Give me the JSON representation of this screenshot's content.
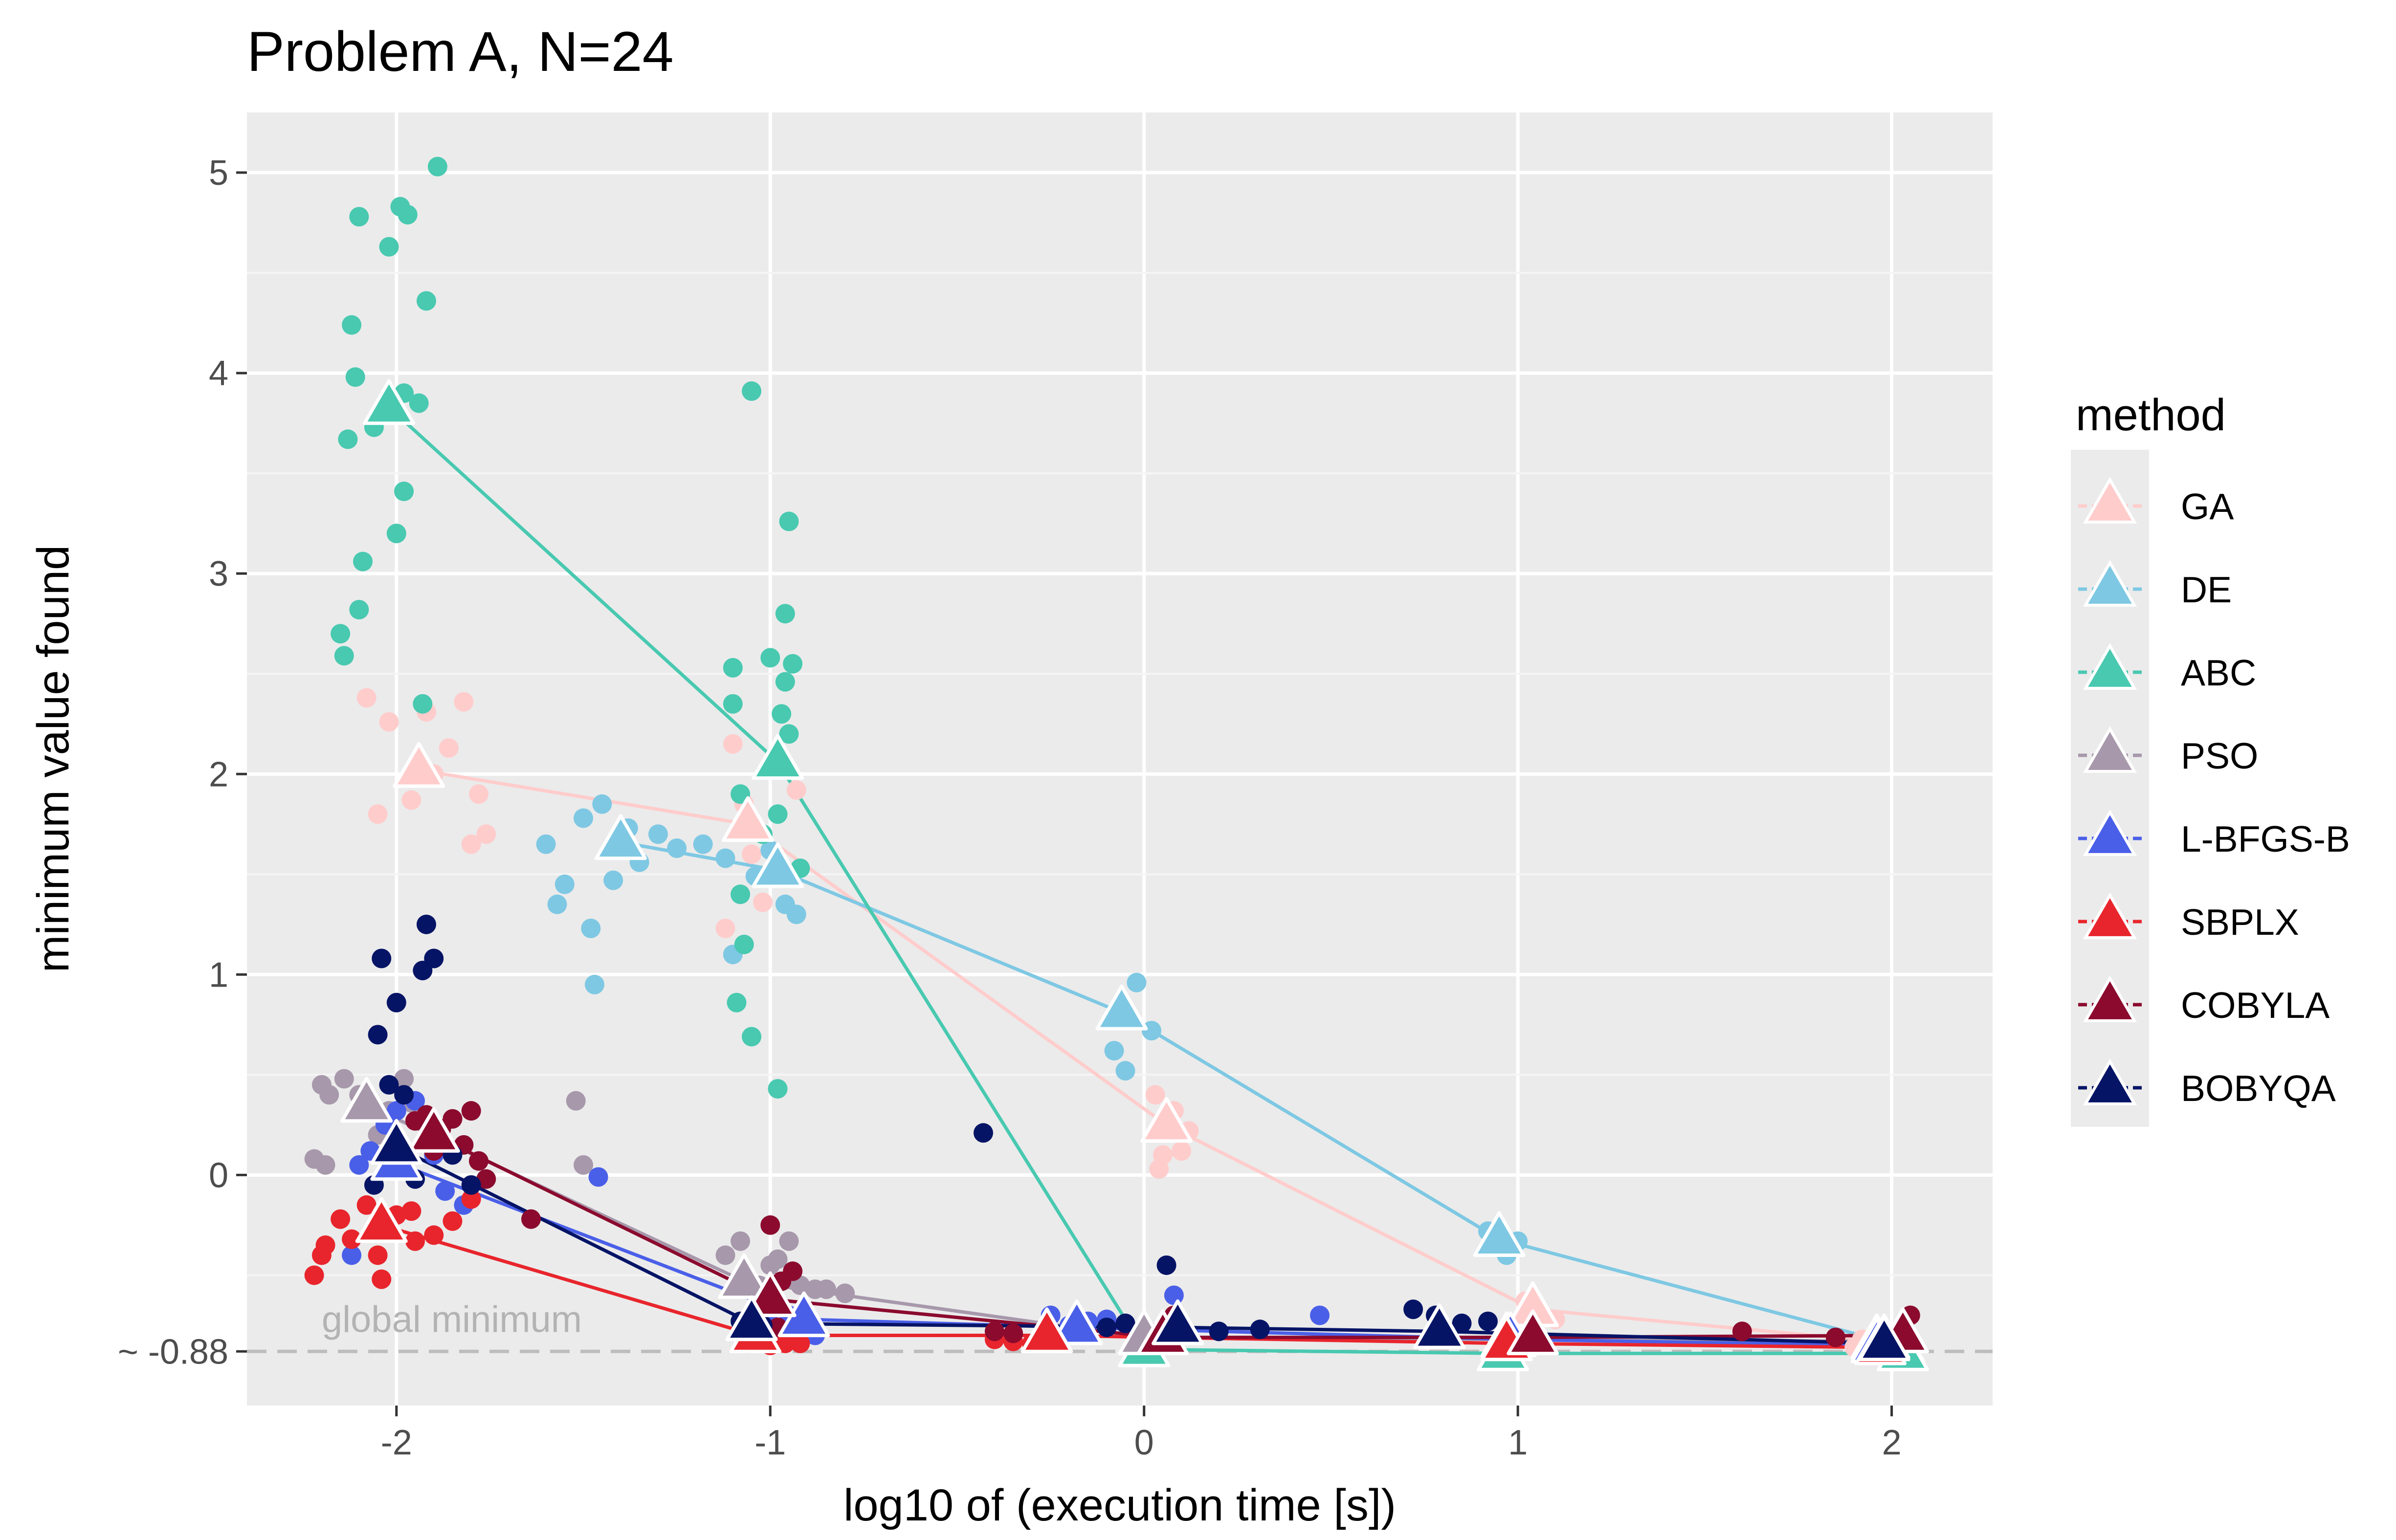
{
  "chart_data": {
    "type": "scatter",
    "title": "Problem A, N=24",
    "xlabel": "log10 of (execution time [s])",
    "ylabel": "minimum value found",
    "xlim": [
      -2.4,
      2.27
    ],
    "ylim": [
      -1.15,
      5.3
    ],
    "x_ticks": [
      {
        "value": -2,
        "label": "-2"
      },
      {
        "value": -1,
        "label": "-1"
      },
      {
        "value": 0,
        "label": "0"
      },
      {
        "value": 1,
        "label": "1"
      },
      {
        "value": 2,
        "label": "2"
      }
    ],
    "y_ticks": [
      {
        "value": 5,
        "label": "5"
      },
      {
        "value": 4,
        "label": "4"
      },
      {
        "value": 3,
        "label": "3"
      },
      {
        "value": 2,
        "label": "2"
      },
      {
        "value": 1,
        "label": "1"
      },
      {
        "value": 0,
        "label": "0"
      },
      {
        "value": -0.88,
        "label": "~ -0.88"
      }
    ],
    "reference_line": {
      "y": -0.88,
      "label": "global minimum",
      "color": "#bdbdbd"
    },
    "legend_title": "method",
    "legend_position": "right",
    "grid": true,
    "background": "#ebebeb",
    "series": [
      {
        "name": "GA",
        "color": "#FFCCCC",
        "summary": [
          [
            -1.94,
            2.02
          ],
          [
            -1.06,
            1.75
          ],
          [
            0.06,
            0.25
          ],
          [
            1.04,
            -0.67
          ],
          [
            1.96,
            -0.83
          ]
        ],
        "points": [
          [
            -2.08,
            2.38
          ],
          [
            -2.05,
            1.8
          ],
          [
            -2.02,
            2.26
          ],
          [
            -1.96,
            1.87
          ],
          [
            -1.92,
            2.31
          ],
          [
            -1.9,
            2.0
          ],
          [
            -1.86,
            2.13
          ],
          [
            -1.82,
            2.36
          ],
          [
            -1.8,
            1.65
          ],
          [
            -1.78,
            1.9
          ],
          [
            -1.76,
            1.7
          ],
          [
            -1.1,
            2.15
          ],
          [
            -1.07,
            1.85
          ],
          [
            -1.05,
            1.6
          ],
          [
            -1.12,
            1.23
          ],
          [
            -1.02,
            1.36
          ],
          [
            -0.93,
            1.92
          ],
          [
            0.03,
            0.4
          ],
          [
            0.05,
            0.1
          ],
          [
            0.08,
            0.32
          ],
          [
            0.12,
            0.22
          ],
          [
            0.1,
            0.12
          ],
          [
            0.04,
            0.03
          ],
          [
            1.02,
            -0.63
          ],
          [
            1.06,
            -0.7
          ],
          [
            1.1,
            -0.72
          ],
          [
            1.92,
            -0.82
          ],
          [
            2.0,
            -0.85
          ],
          [
            1.9,
            -0.86
          ]
        ]
      },
      {
        "name": "DE",
        "color": "#7EC8E3",
        "summary": [
          [
            -1.4,
            1.66
          ],
          [
            -0.98,
            1.52
          ],
          [
            -0.06,
            0.81
          ],
          [
            0.95,
            -0.32
          ],
          [
            2.02,
            -0.85
          ]
        ],
        "points": [
          [
            -1.6,
            1.65
          ],
          [
            -1.55,
            1.45
          ],
          [
            -1.48,
            1.23
          ],
          [
            -1.45,
            1.85
          ],
          [
            -1.5,
            1.78
          ],
          [
            -1.42,
            1.47
          ],
          [
            -1.38,
            1.73
          ],
          [
            -1.35,
            1.56
          ],
          [
            -1.3,
            1.7
          ],
          [
            -1.25,
            1.63
          ],
          [
            -1.18,
            1.65
          ],
          [
            -1.12,
            1.58
          ],
          [
            -1.08,
            1.73
          ],
          [
            -1.04,
            1.49
          ],
          [
            -1.0,
            1.62
          ],
          [
            -0.96,
            1.35
          ],
          [
            -0.93,
            1.3
          ],
          [
            -1.47,
            0.95
          ],
          [
            -1.57,
            1.35
          ],
          [
            -1.1,
            1.1
          ],
          [
            -0.02,
            0.96
          ],
          [
            -0.08,
            0.62
          ],
          [
            -0.05,
            0.52
          ],
          [
            0.02,
            0.72
          ],
          [
            -0.06,
            0.8
          ],
          [
            0.92,
            -0.28
          ],
          [
            0.97,
            -0.4
          ],
          [
            1.0,
            -0.33
          ],
          [
            2.0,
            -0.86
          ],
          [
            2.04,
            -0.88
          ]
        ]
      },
      {
        "name": "ABC",
        "color": "#48C9B0",
        "summary": [
          [
            -2.02,
            3.83
          ],
          [
            -0.98,
            2.06
          ],
          [
            0.0,
            -0.87
          ],
          [
            0.96,
            -0.89
          ],
          [
            2.03,
            -0.89
          ]
        ],
        "points": [
          [
            -2.1,
            4.78
          ],
          [
            -2.12,
            4.24
          ],
          [
            -2.11,
            3.98
          ],
          [
            -2.13,
            3.67
          ],
          [
            -2.06,
            3.73
          ],
          [
            -2.02,
            4.63
          ],
          [
            -1.99,
            4.83
          ],
          [
            -1.97,
            4.79
          ],
          [
            -1.94,
            3.85
          ],
          [
            -1.98,
            3.41
          ],
          [
            -2.0,
            3.2
          ],
          [
            -2.09,
            3.06
          ],
          [
            -2.1,
            2.82
          ],
          [
            -2.15,
            2.7
          ],
          [
            -2.14,
            2.59
          ],
          [
            -1.92,
            4.36
          ],
          [
            -1.89,
            5.03
          ],
          [
            -1.93,
            2.35
          ],
          [
            -1.98,
            3.9
          ],
          [
            -1.05,
            3.91
          ],
          [
            -1.1,
            2.53
          ],
          [
            -1.0,
            2.58
          ],
          [
            -0.95,
            3.26
          ],
          [
            -0.96,
            2.46
          ],
          [
            -0.97,
            2.3
          ],
          [
            -0.94,
            2.55
          ],
          [
            -0.95,
            2.2
          ],
          [
            -1.1,
            2.35
          ],
          [
            -1.08,
            1.9
          ],
          [
            -1.02,
            1.7
          ],
          [
            -0.98,
            1.8
          ],
          [
            -1.08,
            1.4
          ],
          [
            -1.07,
            1.15
          ],
          [
            -1.09,
            0.86
          ],
          [
            -1.05,
            0.69
          ],
          [
            -0.98,
            0.43
          ],
          [
            -0.92,
            1.53
          ],
          [
            -0.96,
            2.8
          ],
          [
            0.02,
            -0.88
          ],
          [
            0.95,
            -0.89
          ],
          [
            2.02,
            -0.89
          ]
        ]
      },
      {
        "name": "PSO",
        "color": "#A798AB",
        "summary": [
          [
            -2.08,
            0.35
          ],
          [
            -1.07,
            -0.53
          ],
          [
            0.0,
            -0.81
          ],
          [
            0.97,
            -0.82
          ],
          [
            1.98,
            -0.83
          ]
        ],
        "points": [
          [
            -2.2,
            0.45
          ],
          [
            -2.18,
            0.4
          ],
          [
            -2.14,
            0.48
          ],
          [
            -2.08,
            0.31
          ],
          [
            -2.05,
            0.2
          ],
          [
            -2.02,
            0.32
          ],
          [
            -1.98,
            0.48
          ],
          [
            -1.96,
            0.36
          ],
          [
            -2.22,
            0.08
          ],
          [
            -2.19,
            0.05
          ],
          [
            -2.1,
            0.4
          ],
          [
            -1.52,
            0.37
          ],
          [
            -1.5,
            0.05
          ],
          [
            -1.12,
            -0.4
          ],
          [
            -1.08,
            -0.33
          ],
          [
            -1.03,
            -0.55
          ],
          [
            -0.98,
            -0.42
          ],
          [
            -0.95,
            -0.33
          ],
          [
            -0.92,
            -0.55
          ],
          [
            -0.88,
            -0.57
          ],
          [
            -0.85,
            -0.57
          ],
          [
            -0.8,
            -0.59
          ],
          [
            -1.0,
            -0.45
          ],
          [
            0.0,
            -0.82
          ],
          [
            0.02,
            -0.8
          ],
          [
            0.96,
            -0.83
          ],
          [
            1.98,
            -0.84
          ]
        ]
      },
      {
        "name": "L-BFGS-B",
        "color": "#4A5FE8",
        "summary": [
          [
            -2.0,
            0.06
          ],
          [
            -0.91,
            -0.72
          ],
          [
            -0.18,
            -0.76
          ],
          [
            0.98,
            -0.82
          ],
          [
            1.96,
            -0.85
          ]
        ],
        "points": [
          [
            -2.1,
            0.05
          ],
          [
            -2.07,
            0.12
          ],
          [
            -2.03,
            0.25
          ],
          [
            -2.0,
            0.32
          ],
          [
            -1.95,
            0.37
          ],
          [
            -1.9,
            0.1
          ],
          [
            -1.87,
            -0.08
          ],
          [
            -1.82,
            -0.15
          ],
          [
            -2.12,
            -0.4
          ],
          [
            -1.46,
            -0.01
          ],
          [
            -1.0,
            -0.68
          ],
          [
            -0.95,
            -0.7
          ],
          [
            -0.88,
            -0.8
          ],
          [
            -0.25,
            -0.7
          ],
          [
            -0.2,
            -0.75
          ],
          [
            -0.15,
            -0.73
          ],
          [
            -0.1,
            -0.72
          ],
          [
            -0.05,
            -0.74
          ],
          [
            0.08,
            -0.6
          ],
          [
            0.47,
            -0.7
          ],
          [
            0.98,
            -0.82
          ],
          [
            1.98,
            -0.86
          ]
        ]
      },
      {
        "name": "SBPLX",
        "color": "#E8252C",
        "summary": [
          [
            -2.04,
            -0.25
          ],
          [
            -1.04,
            -0.8
          ],
          [
            -0.26,
            -0.8
          ],
          [
            0.97,
            -0.84
          ],
          [
            1.97,
            -0.86
          ]
        ],
        "points": [
          [
            -2.22,
            -0.5
          ],
          [
            -2.19,
            -0.35
          ],
          [
            -2.15,
            -0.22
          ],
          [
            -2.12,
            -0.32
          ],
          [
            -2.08,
            -0.15
          ],
          [
            -2.05,
            -0.4
          ],
          [
            -2.0,
            -0.2
          ],
          [
            -1.96,
            -0.18
          ],
          [
            -1.9,
            -0.3
          ],
          [
            -1.85,
            -0.23
          ],
          [
            -1.8,
            -0.12
          ],
          [
            -1.95,
            -0.33
          ],
          [
            -2.2,
            -0.4
          ],
          [
            -2.04,
            -0.52
          ],
          [
            -1.06,
            -0.84
          ],
          [
            -1.0,
            -0.85
          ],
          [
            -0.96,
            -0.84
          ],
          [
            -0.92,
            -0.84
          ],
          [
            -0.4,
            -0.82
          ],
          [
            -0.35,
            -0.83
          ],
          [
            -0.3,
            -0.84
          ],
          [
            0.97,
            -0.85
          ],
          [
            1.97,
            -0.86
          ]
        ]
      },
      {
        "name": "COBYLA",
        "color": "#8B0A2E",
        "summary": [
          [
            -1.9,
            0.2
          ],
          [
            -1.0,
            -0.62
          ],
          [
            0.05,
            -0.81
          ],
          [
            1.04,
            -0.81
          ],
          [
            2.03,
            -0.8
          ]
        ],
        "points": [
          [
            -1.95,
            0.27
          ],
          [
            -1.92,
            0.3
          ],
          [
            -1.88,
            0.23
          ],
          [
            -1.85,
            0.28
          ],
          [
            -1.82,
            0.15
          ],
          [
            -1.8,
            0.32
          ],
          [
            -1.78,
            0.07
          ],
          [
            -1.76,
            -0.02
          ],
          [
            -1.9,
            0.12
          ],
          [
            -1.64,
            -0.22
          ],
          [
            -1.0,
            -0.25
          ],
          [
            -0.97,
            -0.53
          ],
          [
            -0.94,
            -0.48
          ],
          [
            -1.05,
            -0.72
          ],
          [
            -0.98,
            -0.76
          ],
          [
            -0.4,
            -0.78
          ],
          [
            -0.35,
            -0.79
          ],
          [
            0.08,
            -0.7
          ],
          [
            0.1,
            -0.75
          ],
          [
            1.6,
            -0.78
          ],
          [
            1.85,
            -0.81
          ],
          [
            2.05,
            -0.7
          ],
          [
            2.02,
            -0.78
          ]
        ]
      },
      {
        "name": "BOBYQA",
        "color": "#061466",
        "summary": [
          [
            -2.0,
            0.14
          ],
          [
            -1.05,
            -0.74
          ],
          [
            0.09,
            -0.76
          ],
          [
            0.79,
            -0.78
          ],
          [
            1.98,
            -0.84
          ]
        ],
        "points": [
          [
            -2.05,
            0.7
          ],
          [
            -2.02,
            0.45
          ],
          [
            -2.0,
            0.86
          ],
          [
            -2.04,
            1.08
          ],
          [
            -1.92,
            1.25
          ],
          [
            -1.9,
            1.08
          ],
          [
            -1.93,
            1.02
          ],
          [
            -1.98,
            0.4
          ],
          [
            -1.85,
            0.1
          ],
          [
            -1.8,
            -0.05
          ],
          [
            -1.95,
            -0.02
          ],
          [
            -2.06,
            -0.05
          ],
          [
            -0.43,
            0.21
          ],
          [
            -1.08,
            -0.73
          ],
          [
            -1.02,
            -0.75
          ],
          [
            0.06,
            -0.45
          ],
          [
            0.04,
            -0.78
          ],
          [
            0.2,
            -0.78
          ],
          [
            0.31,
            -0.77
          ],
          [
            0.72,
            -0.67
          ],
          [
            0.78,
            -0.7
          ],
          [
            0.85,
            -0.74
          ],
          [
            0.92,
            -0.73
          ],
          [
            1.98,
            -0.85
          ],
          [
            -0.05,
            -0.74
          ],
          [
            -0.1,
            -0.76
          ]
        ]
      }
    ]
  }
}
